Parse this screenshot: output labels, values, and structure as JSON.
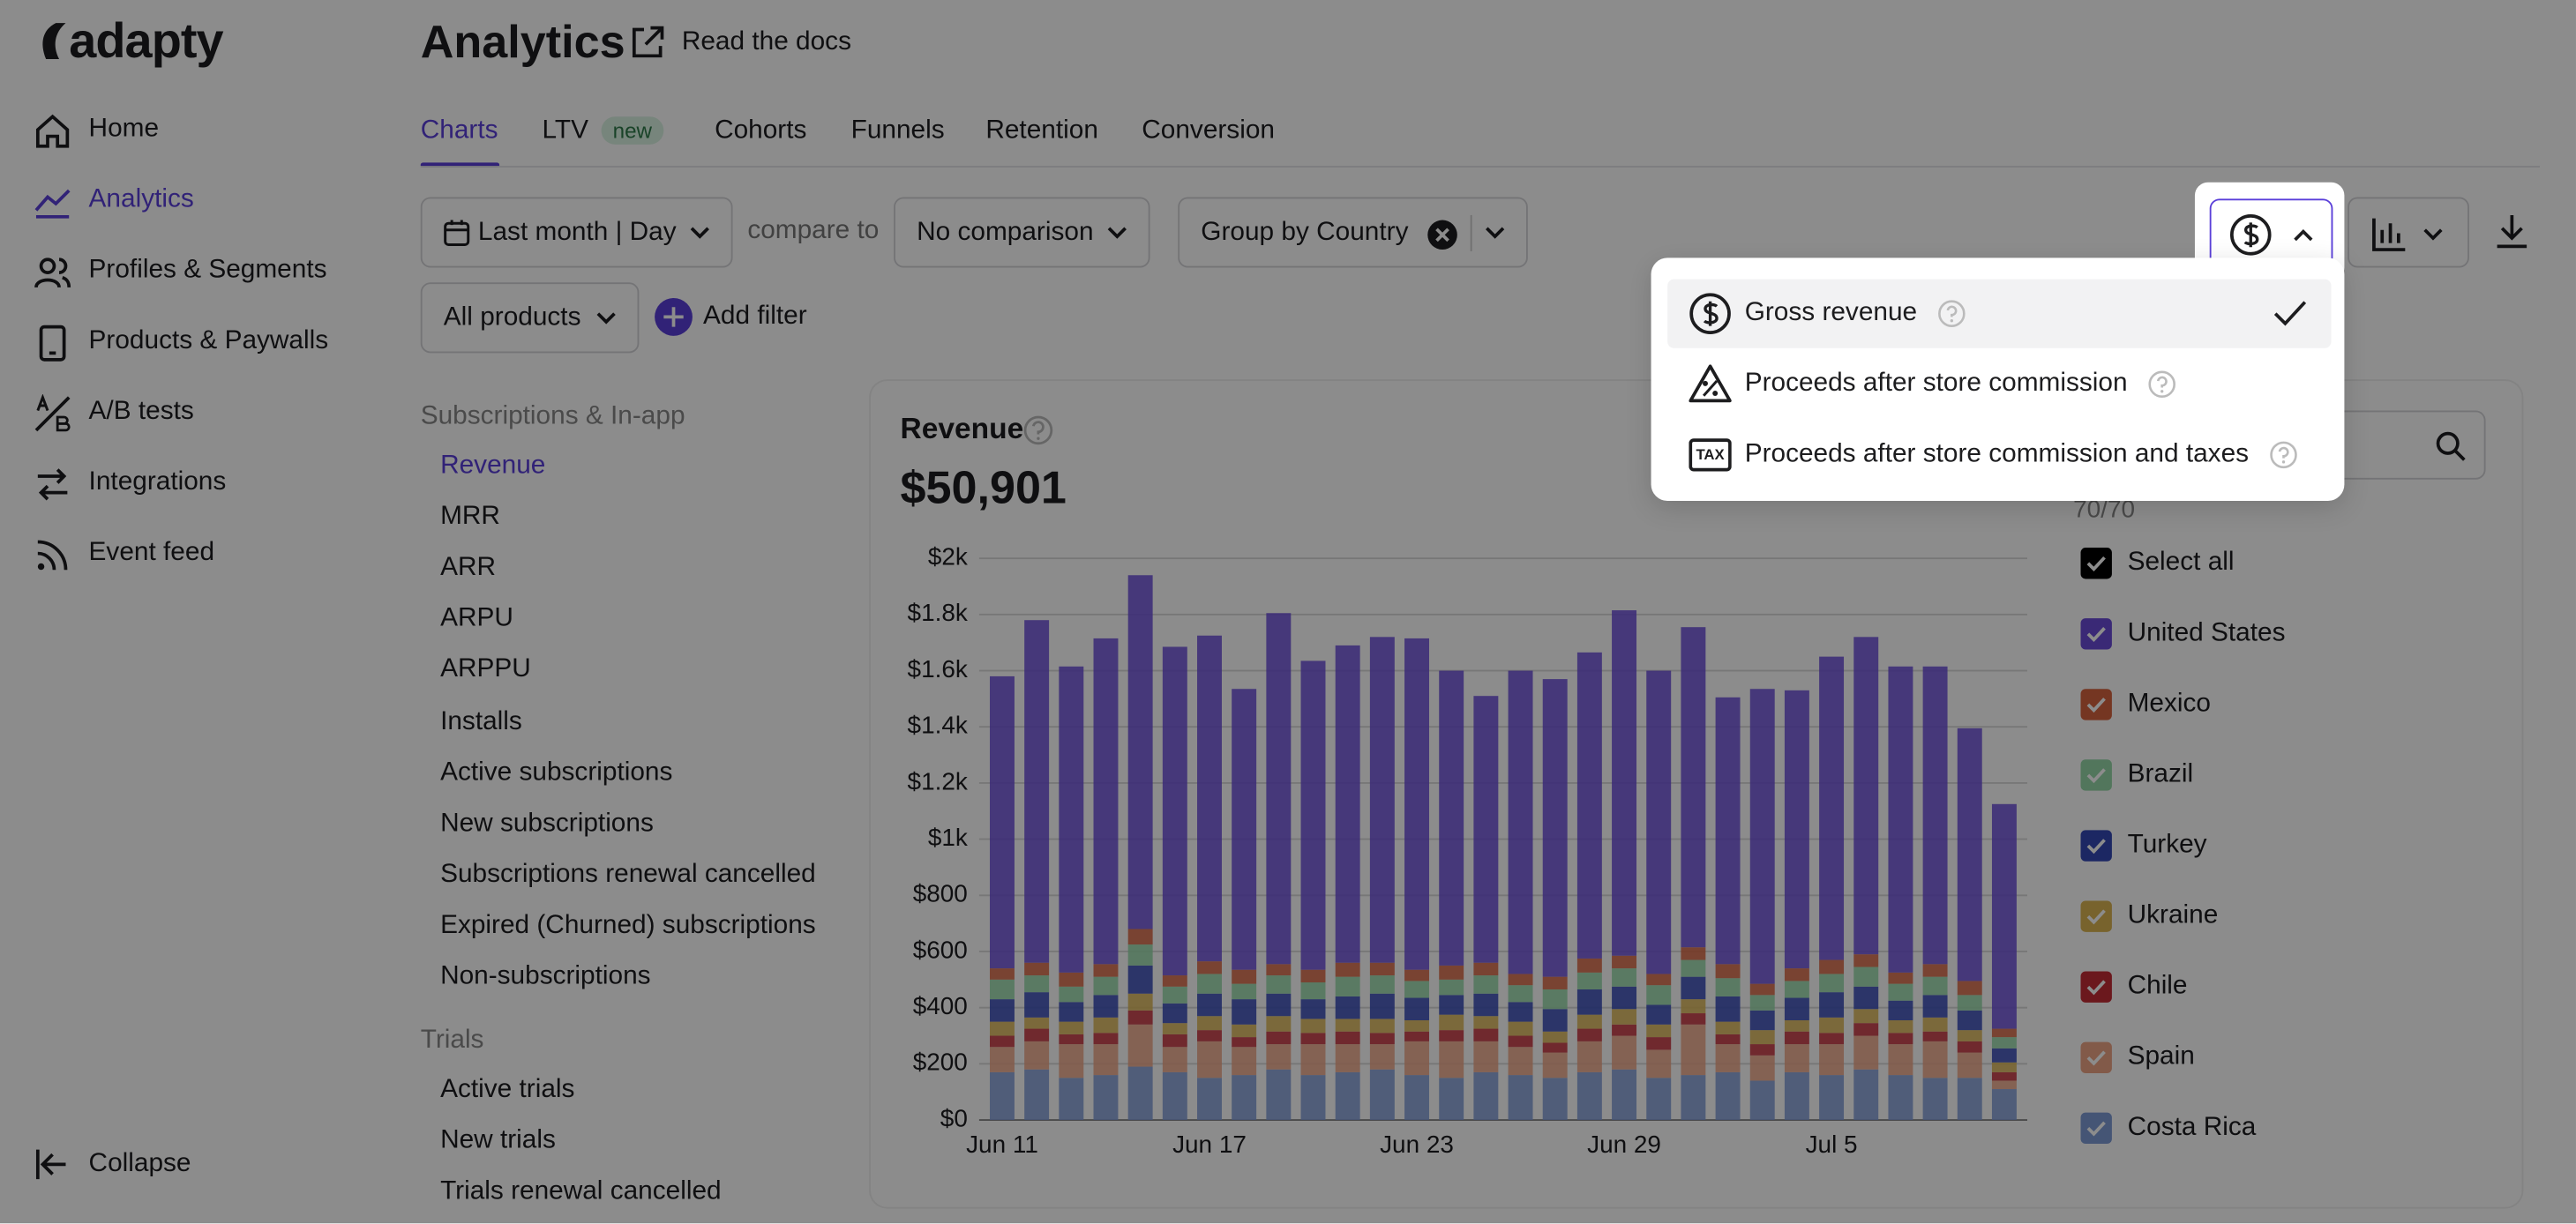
{
  "sidebar": {
    "logo": "adapty",
    "nav": [
      "Home",
      "Analytics",
      "Profiles & Segments",
      "Products & Paywalls",
      "A/B tests",
      "Integrations",
      "Event feed"
    ],
    "active": 1,
    "collapse": "Collapse"
  },
  "header": {
    "title": "Analytics",
    "docs_link": "Read the docs"
  },
  "tabs": {
    "items": [
      "Charts",
      "LTV",
      "Cohorts",
      "Funnels",
      "Retention",
      "Conversion"
    ],
    "active": 0,
    "badge": "new"
  },
  "filters": {
    "date_range": "Last month | Day",
    "compare_label": "compare to",
    "comparison": "No comparison",
    "group_by": "Group by Country",
    "products": "All products",
    "add_filter": "Add filter"
  },
  "metrics": {
    "sections": [
      {
        "title": "Subscriptions & In-app",
        "items": [
          "Revenue",
          "MRR",
          "ARR",
          "ARPU",
          "ARPPU",
          "Installs",
          "Active subscriptions",
          "New subscriptions",
          "Subscriptions renewal cancelled",
          "Expired (Churned) subscriptions",
          "Non-subscriptions"
        ]
      },
      {
        "title": "Trials",
        "items": [
          "Active trials",
          "New trials",
          "Trials renewal cancelled"
        ]
      }
    ],
    "active": "Revenue"
  },
  "dropdown": {
    "options": [
      {
        "label": "Gross revenue",
        "selected": true
      },
      {
        "label": "Proceeds after store commission",
        "selected": false
      },
      {
        "label": "Proceeds after store commission and taxes",
        "selected": false,
        "icon_text": "TAX"
      }
    ]
  },
  "country_panel": {
    "count": "70/70",
    "select_all": "Select all"
  },
  "chart_data": {
    "type": "stacked_bar",
    "title": "Revenue",
    "summary": "$50,901",
    "categories": [
      "Jun 11",
      null,
      null,
      null,
      null,
      null,
      "Jun 17",
      null,
      null,
      null,
      null,
      null,
      "Jun 23",
      null,
      null,
      null,
      null,
      null,
      "Jun 29",
      null,
      null,
      null,
      null,
      null,
      "Jul 5",
      null,
      null,
      null,
      null,
      null
    ],
    "series": [
      {
        "name": "United States",
        "color": "#6a4bd8",
        "values": [
          1040,
          1220,
          1090,
          1160,
          1260,
          1170,
          1160,
          1000,
          1250,
          1100,
          1130,
          1160,
          1180,
          1050,
          950,
          1080,
          1060,
          1090,
          1230,
          1080,
          1140,
          950,
          1050,
          990,
          1080,
          1130,
          1090,
          1060,
          900,
          800
        ]
      },
      {
        "name": "Mexico",
        "color": "#d6633f",
        "values": [
          40,
          45,
          50,
          45,
          55,
          40,
          45,
          50,
          40,
          45,
          50,
          45,
          40,
          50,
          45,
          40,
          45,
          50,
          45,
          40,
          45,
          50,
          40,
          45,
          50,
          45,
          40,
          45,
          50,
          30
        ]
      },
      {
        "name": "Brazil",
        "color": "#95d8a8",
        "values": [
          70,
          60,
          55,
          65,
          75,
          60,
          70,
          55,
          65,
          60,
          70,
          65,
          60,
          55,
          65,
          60,
          70,
          60,
          65,
          70,
          60,
          65,
          55,
          60,
          65,
          70,
          60,
          65,
          55,
          40
        ]
      },
      {
        "name": "Turkey",
        "color": "#3347b5",
        "values": [
          80,
          90,
          70,
          80,
          100,
          70,
          80,
          90,
          80,
          70,
          80,
          90,
          80,
          70,
          80,
          70,
          80,
          90,
          80,
          70,
          80,
          90,
          70,
          80,
          90,
          80,
          70,
          80,
          70,
          50
        ]
      },
      {
        "name": "Ukraine",
        "color": "#dbb552",
        "values": [
          50,
          40,
          45,
          55,
          60,
          40,
          50,
          45,
          55,
          50,
          45,
          50,
          40,
          55,
          45,
          50,
          40,
          50,
          55,
          45,
          50,
          45,
          50,
          40,
          55,
          50,
          45,
          50,
          40,
          35
        ]
      },
      {
        "name": "Chile",
        "color": "#c42d36",
        "values": [
          40,
          45,
          35,
          40,
          50,
          45,
          40,
          35,
          45,
          40,
          45,
          40,
          35,
          40,
          45,
          40,
          35,
          45,
          40,
          45,
          40,
          35,
          40,
          45,
          40,
          45,
          40,
          35,
          40,
          30
        ]
      },
      {
        "name": "Spain",
        "color": "#eda586",
        "values": [
          90,
          100,
          120,
          110,
          150,
          90,
          130,
          100,
          90,
          110,
          100,
          90,
          120,
          130,
          110,
          100,
          90,
          110,
          120,
          100,
          180,
          100,
          90,
          100,
          110,
          120,
          110,
          130,
          90,
          30
        ]
      },
      {
        "name": "Costa Rica",
        "color": "#7f9bd6",
        "values": [
          170,
          180,
          150,
          160,
          190,
          170,
          150,
          160,
          180,
          160,
          170,
          180,
          160,
          150,
          170,
          160,
          150,
          170,
          180,
          150,
          160,
          170,
          140,
          170,
          160,
          180,
          160,
          150,
          150,
          110
        ]
      }
    ],
    "ylim": [
      0,
      2000
    ],
    "yticks": [
      {
        "value": 0,
        "label": "$0"
      },
      {
        "value": 200,
        "label": "$200"
      },
      {
        "value": 400,
        "label": "$400"
      },
      {
        "value": 600,
        "label": "$600"
      },
      {
        "value": 800,
        "label": "$800"
      },
      {
        "value": 1000,
        "label": "$1k"
      },
      {
        "value": 1200,
        "label": "$1.2k"
      },
      {
        "value": 1400,
        "label": "$1.4k"
      },
      {
        "value": 1600,
        "label": "$1.6k"
      },
      {
        "value": 1800,
        "label": "$1.8k"
      },
      {
        "value": 2000,
        "label": "$2k"
      }
    ],
    "grid": true
  }
}
